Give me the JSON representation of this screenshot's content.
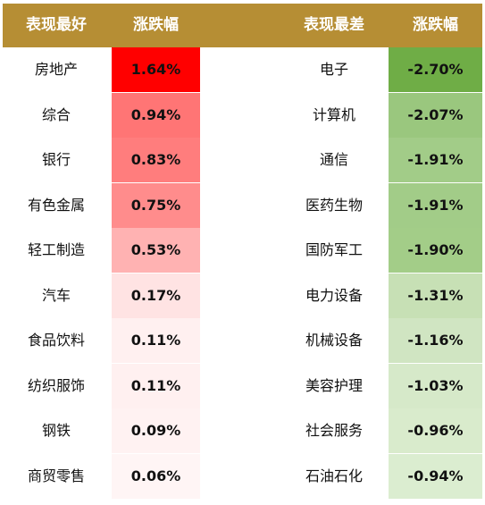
{
  "header": {
    "best_label": "表现最好",
    "best_change_label": "涨跌幅",
    "worst_label": "表现最差",
    "worst_change_label": "涨跌幅"
  },
  "chart_data": {
    "type": "table",
    "columns": [
      "表现最好",
      "涨跌幅",
      "表现最差",
      "涨跌幅"
    ],
    "best": [
      {
        "name": "房地产",
        "value": "1.64%",
        "num": 1.64
      },
      {
        "name": "综合",
        "value": "0.94%",
        "num": 0.94
      },
      {
        "name": "银行",
        "value": "0.83%",
        "num": 0.83
      },
      {
        "name": "有色金属",
        "value": "0.75%",
        "num": 0.75
      },
      {
        "name": "轻工制造",
        "value": "0.53%",
        "num": 0.53
      },
      {
        "name": "汽车",
        "value": "0.17%",
        "num": 0.17
      },
      {
        "name": "食品饮料",
        "value": "0.11%",
        "num": 0.11
      },
      {
        "name": "纺织服饰",
        "value": "0.11%",
        "num": 0.11
      },
      {
        "name": "钢铁",
        "value": "0.09%",
        "num": 0.09
      },
      {
        "name": "商贸零售",
        "value": "0.06%",
        "num": 0.06
      }
    ],
    "worst": [
      {
        "name": "电子",
        "value": "-2.70%",
        "num": -2.7
      },
      {
        "name": "计算机",
        "value": "-2.07%",
        "num": -2.07
      },
      {
        "name": "通信",
        "value": "-1.91%",
        "num": -1.91
      },
      {
        "name": "医药生物",
        "value": "-1.91%",
        "num": -1.91
      },
      {
        "name": "国防军工",
        "value": "-1.90%",
        "num": -1.9
      },
      {
        "name": "电力设备",
        "value": "-1.31%",
        "num": -1.31
      },
      {
        "name": "机械设备",
        "value": "-1.16%",
        "num": -1.16
      },
      {
        "name": "美容护理",
        "value": "-1.03%",
        "num": -1.03
      },
      {
        "name": "社会服务",
        "value": "-0.96%",
        "num": -0.96
      },
      {
        "name": "石油石化",
        "value": "-0.94%",
        "num": -0.94
      }
    ],
    "best_colors": [
      "#ff0000",
      "#ff7575",
      "#ff7d7d",
      "#ff8c8c",
      "#ffb2b2",
      "#ffe3e3",
      "#fff0f0",
      "#fff0f0",
      "#fff2f2",
      "#fff5f5"
    ],
    "worst_colors": [
      "#6fad46",
      "#9ac77e",
      "#a2cc88",
      "#a2cc88",
      "#a3cd88",
      "#c7e0b5",
      "#d0e5c2",
      "#d6e9c9",
      "#d9ebcc",
      "#dbedd0"
    ],
    "header_color": "#b68e34"
  }
}
